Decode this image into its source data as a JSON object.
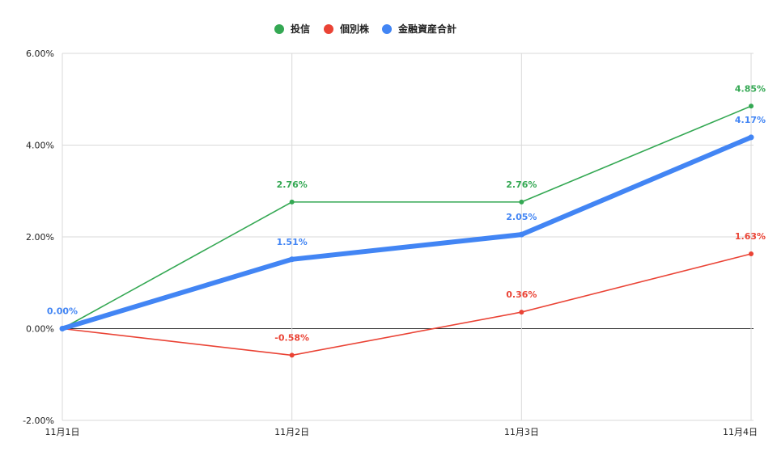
{
  "chart_data": {
    "type": "line",
    "categories": [
      "11月1日",
      "11月2日",
      "11月3日",
      "11月4日"
    ],
    "y_tick_labels": [
      "-2.00%",
      "0.00%",
      "2.00%",
      "4.00%",
      "6.00%"
    ],
    "ylim": [
      -2.0,
      6.0
    ],
    "y_unit": "%",
    "grid": true,
    "legend_position": "top-center",
    "series": [
      {
        "name": "投信",
        "color": "#34a853",
        "values": [
          0.0,
          2.76,
          2.76,
          4.85
        ],
        "labels": [
          null,
          "2.76%",
          "2.76%",
          "4.85%"
        ],
        "emphasis": "thin"
      },
      {
        "name": "個別株",
        "color": "#ea4335",
        "values": [
          0.0,
          -0.58,
          0.36,
          1.63
        ],
        "labels": [
          null,
          "-0.58%",
          "0.36%",
          "1.63%"
        ],
        "emphasis": "thin"
      },
      {
        "name": "金融資産合計",
        "color": "#4285f4",
        "values": [
          0.0,
          1.51,
          2.05,
          4.17
        ],
        "labels": [
          "0.00%",
          "1.51%",
          "2.05%",
          "4.17%"
        ],
        "emphasis": "thick"
      }
    ]
  }
}
